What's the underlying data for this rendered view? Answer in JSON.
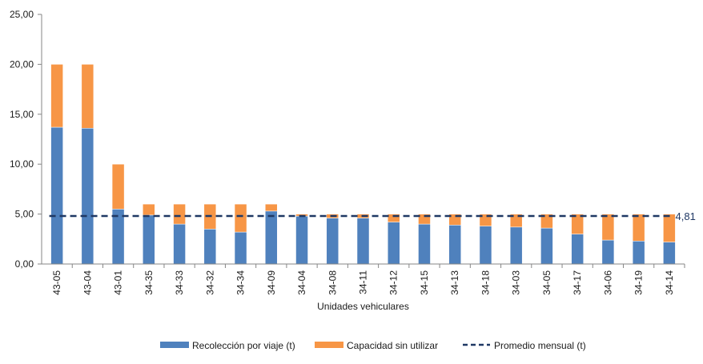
{
  "chart_data": {
    "type": "bar",
    "stacked": true,
    "categories": [
      "43-05",
      "43-04",
      "43-01",
      "34-35",
      "34-33",
      "34-32",
      "34-34",
      "34-09",
      "34-04",
      "34-08",
      "34-11",
      "34-12",
      "34-15",
      "34-13",
      "34-18",
      "34-03",
      "34-05",
      "34-17",
      "34-06",
      "34-19",
      "34-14"
    ],
    "series": [
      {
        "name": "Recolección por viaje (t)",
        "color": "#4f81bd",
        "values": [
          13.7,
          13.6,
          5.5,
          4.9,
          4.0,
          3.5,
          3.2,
          5.3,
          4.8,
          4.6,
          4.6,
          4.2,
          4.0,
          3.9,
          3.8,
          3.7,
          3.6,
          3.0,
          2.4,
          2.3,
          2.2
        ]
      },
      {
        "name": "Capacidad sin utilizar",
        "color": "#f79646",
        "values": [
          6.3,
          6.4,
          4.5,
          1.1,
          2.0,
          2.5,
          2.8,
          0.7,
          0.2,
          0.4,
          0.4,
          0.8,
          1.0,
          1.1,
          1.2,
          1.3,
          1.4,
          2.0,
          2.6,
          2.7,
          2.8
        ]
      }
    ],
    "line": {
      "name": "Promedio mensual (t)",
      "value": 4.81,
      "label": "4,81",
      "color": "#1f3864",
      "style": "dashed"
    },
    "xlabel": "Unidades vehiculares",
    "ylabel": "",
    "ylim": [
      0,
      25
    ],
    "yticks": [
      "0,00",
      "5,00",
      "10,00",
      "15,00",
      "20,00",
      "25,00"
    ],
    "grid": false,
    "legend_position": "bottom"
  }
}
